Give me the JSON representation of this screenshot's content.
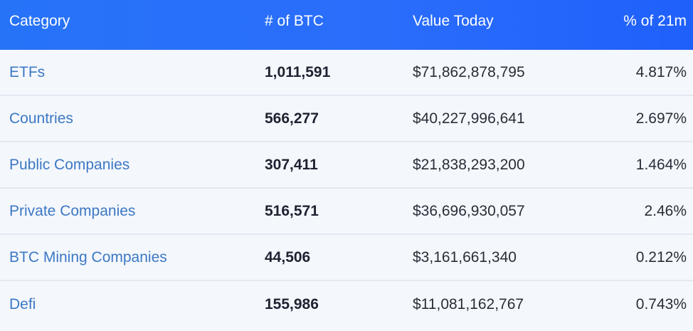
{
  "header": {
    "category": "Category",
    "btc": "# of BTC",
    "value": "Value Today",
    "pct": "% of 21m"
  },
  "rows": [
    {
      "category": "ETFs",
      "btc": "1,011,591",
      "value": "$71,862,878,795",
      "pct": "4.817%"
    },
    {
      "category": "Countries",
      "btc": "566,277",
      "value": "$40,227,996,641",
      "pct": "2.697%"
    },
    {
      "category": "Public Companies",
      "btc": "307,411",
      "value": "$21,838,293,200",
      "pct": "1.464%"
    },
    {
      "category": "Private Companies",
      "btc": "516,571",
      "value": "$36,696,930,057",
      "pct": "2.46%"
    },
    {
      "category": "BTC Mining Companies",
      "btc": "44,506",
      "value": "$3,161,661,340",
      "pct": "0.212%"
    },
    {
      "category": "Defi",
      "btc": "155,986",
      "value": "$11,081,162,767",
      "pct": "0.743%"
    }
  ],
  "colors": {
    "header_bg": "#2a6dfb",
    "category_link": "#3c78c4",
    "row_bg": "#f4f7fc",
    "divider": "#e3e9f3"
  }
}
